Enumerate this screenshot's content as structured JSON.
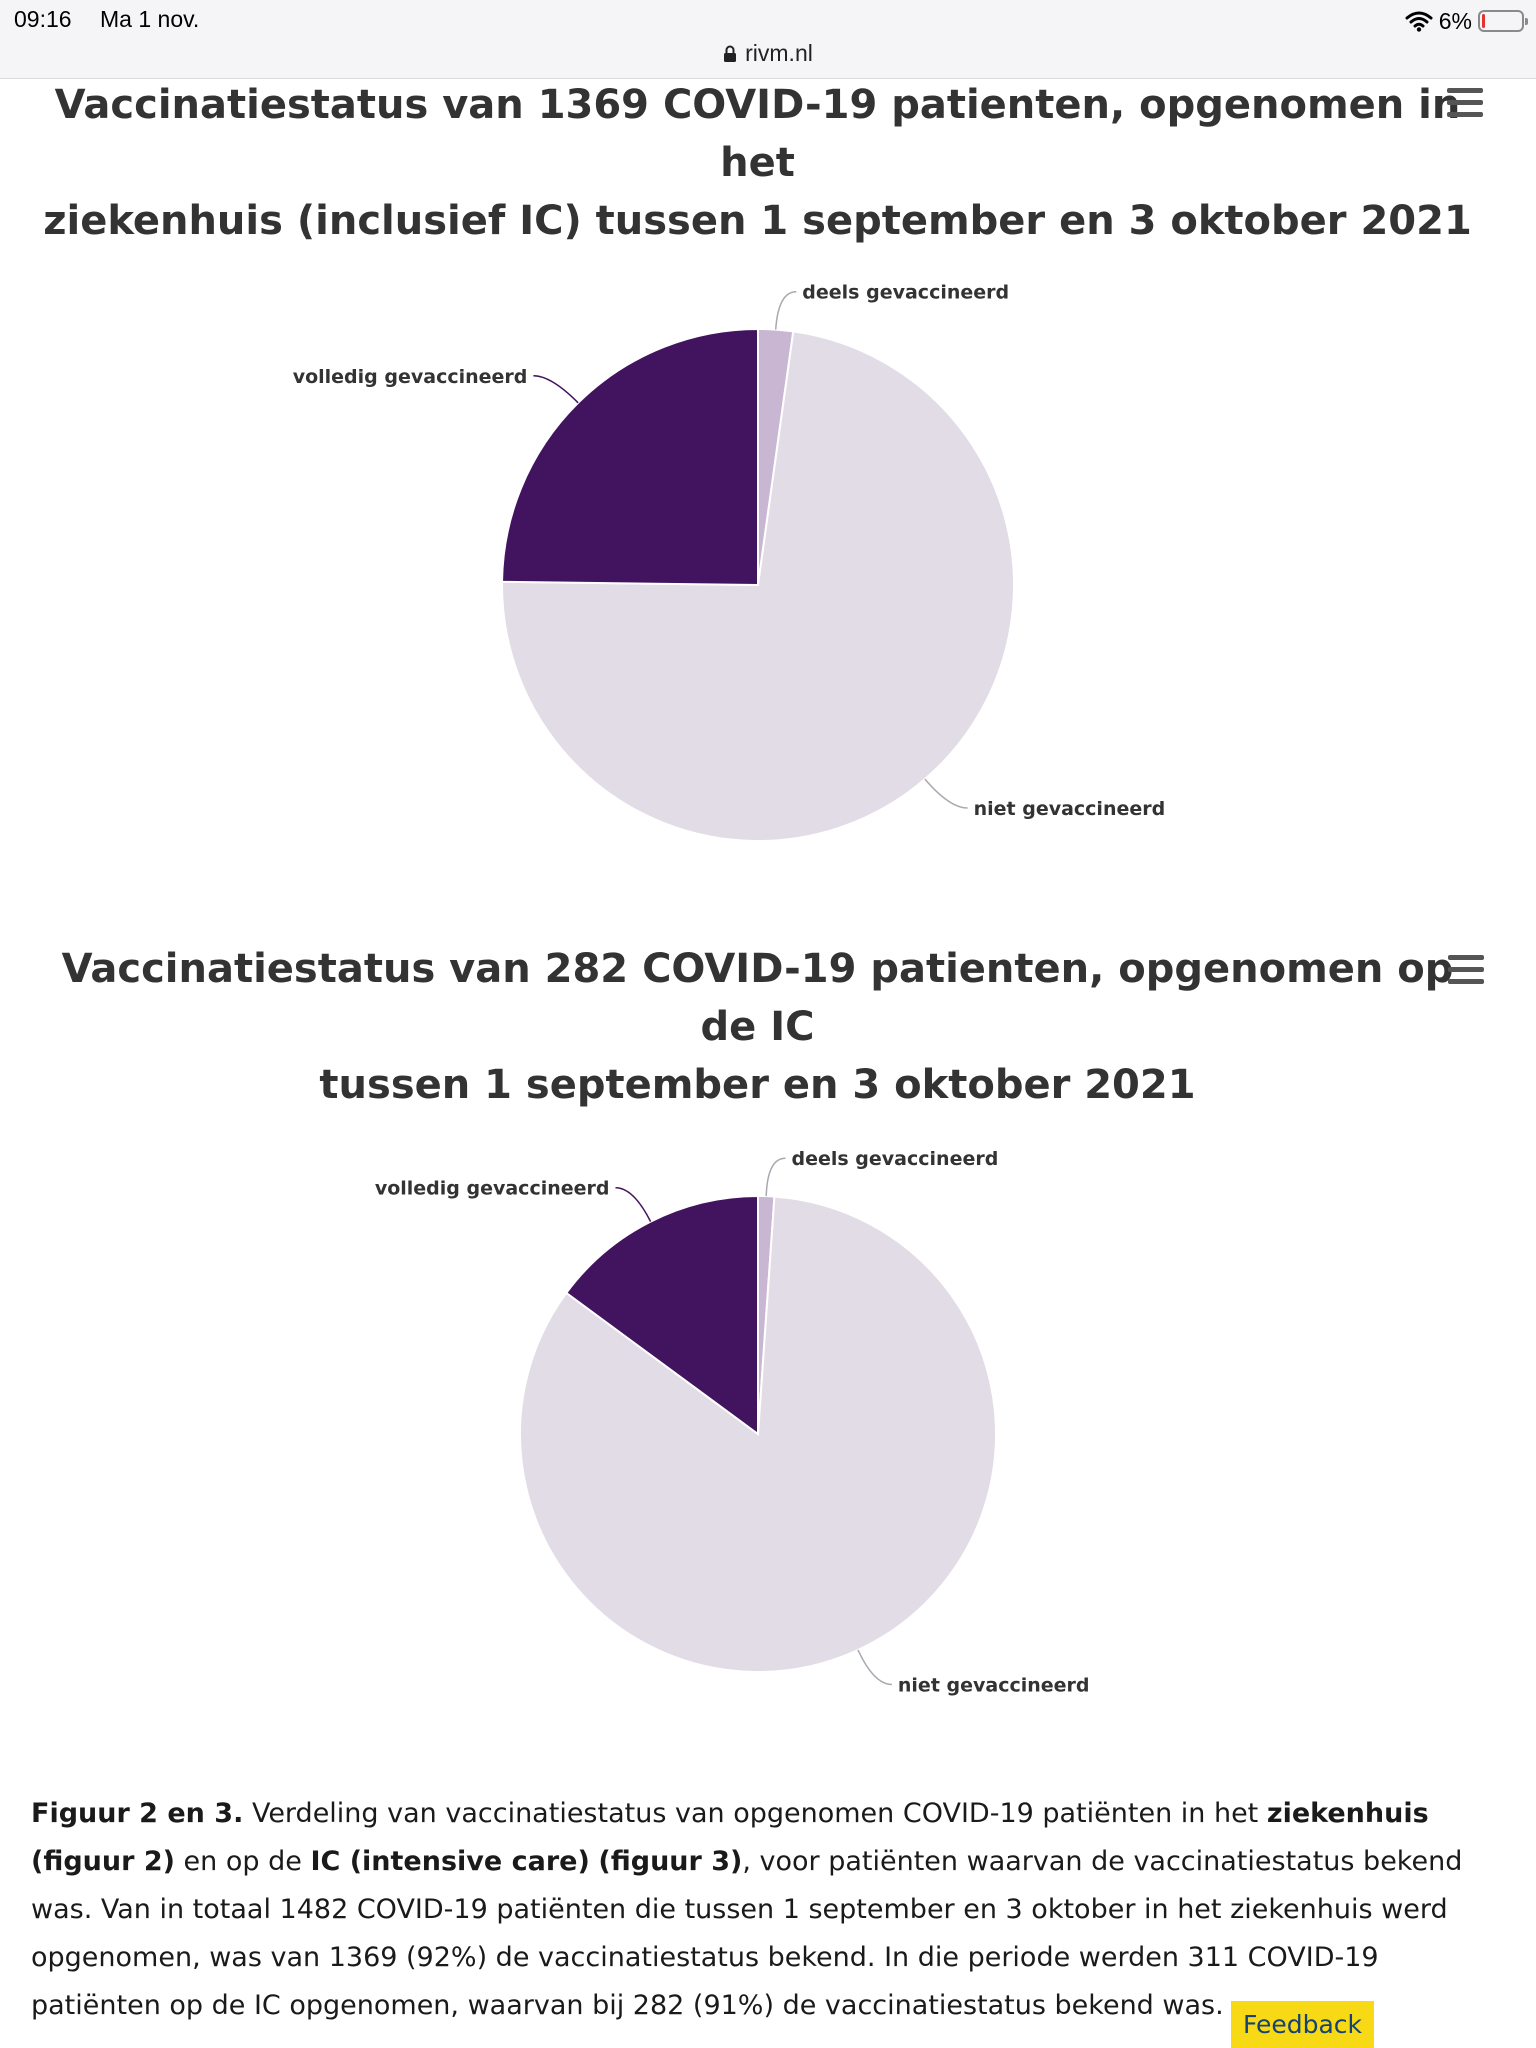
{
  "status_bar": {
    "time": "09:16",
    "date": "Ma 1 nov.",
    "battery": "6%",
    "url": "rivm.nl"
  },
  "charts": [
    {
      "title_line1": "Vaccinatiestatus van 1369 COVID-19 patienten, opgenomen in het",
      "title_line2": "ziekenhuis (inclusief IC) tussen 1 september en 3 oktober 2021"
    },
    {
      "title_line1": "Vaccinatiestatus van 282 COVID-19 patienten, opgenomen op de IC",
      "title_line2": "tussen 1 september en 3 oktober 2021"
    }
  ],
  "chart_data": [
    {
      "type": "pie",
      "title": "Vaccinatiestatus van 1369 COVID-19 patienten, opgenomen in het ziekenhuis (inclusief IC) tussen 1 september en 3 oktober 2021",
      "slices": [
        {
          "label": "deels gevaccineerd",
          "value": 2.2,
          "color": "#c9b6d3"
        },
        {
          "label": "niet gevaccineerd",
          "value": 73.0,
          "color": "#e2dce6"
        },
        {
          "label": "volledig gevaccineerd",
          "value": 24.8,
          "color": "#42145f"
        }
      ]
    },
    {
      "type": "pie",
      "title": "Vaccinatiestatus van 282 COVID-19 patienten, opgenomen op de IC tussen 1 september en 3 oktober 2021",
      "slices": [
        {
          "label": "deels gevaccineerd",
          "value": 1.1,
          "color": "#c9b6d3"
        },
        {
          "label": "niet gevaccineerd",
          "value": 84.0,
          "color": "#e2dce6"
        },
        {
          "label": "volledig gevaccineerd",
          "value": 14.9,
          "color": "#42145f"
        }
      ]
    }
  ],
  "caption": {
    "lead": "Figuur 2 en 3.",
    "t1": " Verdeling van vaccinatiestatus van opgenomen COVID-19 patiënten in het ",
    "b1": "ziekenhuis",
    "t2": " ",
    "b2": "(figuur 2)",
    "t3": "  en op de ",
    "b3": "IC (intensive care)",
    "t4": " ",
    "b4": "(figuur 3)",
    "t5": ", voor patiënten waarvan de vaccinatiestatus bekend was. Van in totaal 1482 COVID-19 patiënten die tussen 1 september en 3 oktober in het ziekenhuis werd opgenomen, was van 1369 (92%) de vaccinatiestatus bekend. In die periode werden 311 COVID-19 patiënten op de IC opgenomen, waarvan bij 282 (91%) de vaccinatiestatus bekend was."
  },
  "feedback_label": "Feedback"
}
